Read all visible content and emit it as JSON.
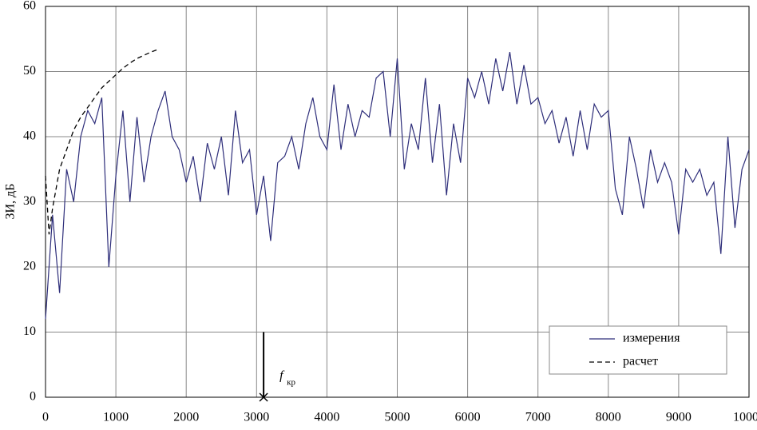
{
  "chart_data": {
    "type": "line",
    "y_label": "ЗИ, дБ",
    "xlim": [
      0,
      10000
    ],
    "xticks": [
      0,
      1000,
      2000,
      3000,
      4000,
      5000,
      6000,
      7000,
      8000,
      9000,
      10000
    ],
    "ylim": [
      0,
      60
    ],
    "yticks": [
      0,
      10,
      20,
      30,
      40,
      50,
      60
    ],
    "grid": true,
    "legend": "lower right",
    "series": [
      {
        "name": "измерения",
        "color": "#2e2e7a",
        "dash": false,
        "x": [
          0,
          100,
          200,
          300,
          400,
          500,
          600,
          700,
          800,
          900,
          1000,
          1100,
          1200,
          1300,
          1400,
          1500,
          1600,
          1700,
          1800,
          1900,
          2000,
          2100,
          2200,
          2300,
          2400,
          2500,
          2600,
          2700,
          2800,
          2900,
          3000,
          3100,
          3200,
          3300,
          3400,
          3500,
          3600,
          3700,
          3800,
          3900,
          4000,
          4100,
          4200,
          4300,
          4400,
          4500,
          4600,
          4700,
          4800,
          4900,
          5000,
          5100,
          5200,
          5300,
          5400,
          5500,
          5600,
          5700,
          5800,
          5900,
          6000,
          6100,
          6200,
          6300,
          6400,
          6500,
          6600,
          6700,
          6800,
          6900,
          7000,
          7100,
          7200,
          7300,
          7400,
          7500,
          7600,
          7700,
          7800,
          7900,
          8000,
          8100,
          8200,
          8300,
          8400,
          8500,
          8600,
          8700,
          8800,
          8900,
          9000,
          9100,
          9200,
          9300,
          9400,
          9500,
          9600,
          9700,
          9800,
          9900,
          10000
        ],
        "values": [
          12,
          28,
          16,
          35,
          30,
          40,
          44,
          42,
          46,
          20,
          34,
          44,
          30,
          43,
          33,
          40,
          44,
          47,
          40,
          38,
          33,
          37,
          30,
          39,
          35,
          40,
          31,
          44,
          36,
          38,
          28,
          34,
          24,
          36,
          37,
          40,
          35,
          42,
          46,
          40,
          38,
          48,
          38,
          45,
          40,
          44,
          43,
          49,
          50,
          40,
          52,
          35,
          42,
          38,
          49,
          36,
          45,
          31,
          42,
          36,
          49,
          46,
          50,
          45,
          52,
          47,
          53,
          45,
          51,
          45,
          46,
          42,
          44,
          39,
          43,
          37,
          44,
          38,
          45,
          43,
          44,
          32,
          28,
          40,
          35,
          29,
          38,
          33,
          36,
          33,
          25,
          35,
          33,
          35,
          31,
          33,
          22,
          40,
          26,
          35,
          38
        ]
      },
      {
        "name": "расчет",
        "color": "#000000",
        "dash": true,
        "x": [
          0,
          50,
          100,
          200,
          300,
          400,
          500,
          600,
          700,
          800,
          900,
          1000,
          1100,
          1200,
          1300,
          1400,
          1500,
          1600
        ],
        "values": [
          34,
          25,
          29,
          35,
          38,
          41,
          43,
          44.5,
          46,
          47.5,
          48.5,
          49.5,
          50.5,
          51.3,
          52,
          52.5,
          53,
          53.4
        ]
      }
    ],
    "annotation": {
      "text": "f",
      "subscript": "кр",
      "x": 3100,
      "y_from": 10,
      "y_to": 0
    }
  }
}
